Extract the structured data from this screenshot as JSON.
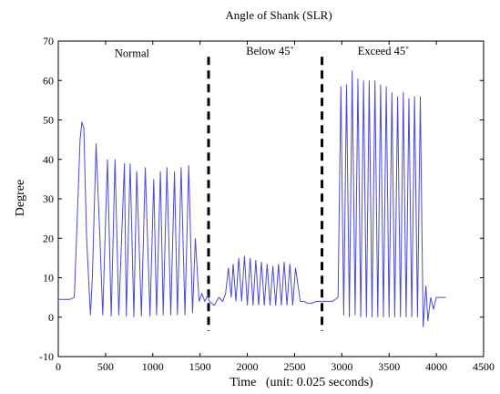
{
  "chart_data": {
    "type": "line",
    "title": "Angle of Shank (SLR)",
    "xlabel": "Time   (unit: 0.025 seconds)",
    "ylabel": "Degree",
    "xlim": [
      0,
      4500
    ],
    "ylim": [
      -10,
      70
    ],
    "xticks": [
      0,
      500,
      1000,
      1500,
      2000,
      2500,
      3000,
      3500,
      4000,
      4500
    ],
    "yticks": [
      -10,
      0,
      10,
      20,
      30,
      40,
      50,
      60,
      70
    ],
    "grid": false,
    "line_color": "#4a4ad8",
    "divider_lines": [
      {
        "x": 1590,
        "style": "dashed",
        "color": "#000000"
      },
      {
        "x": 2790,
        "style": "dashed",
        "color": "#000000"
      }
    ],
    "annotations": [
      {
        "text": "Normal",
        "x": 780,
        "y": 66
      },
      {
        "text": "Below 45˚",
        "x": 2240,
        "y": 66.5
      },
      {
        "text": "Exceed 45˚",
        "x": 3440,
        "y": 66.5
      }
    ],
    "series": [
      {
        "x": [
          0,
          60,
          120,
          170,
          200,
          230,
          250,
          270,
          300,
          340,
          360,
          400,
          440,
          470,
          520,
          560,
          600,
          640,
          700,
          720,
          760,
          800,
          830,
          880,
          920,
          970,
          1010,
          1040,
          1080,
          1110,
          1150,
          1190,
          1230,
          1260,
          1300,
          1340,
          1380,
          1420,
          1450,
          1490,
          1520,
          1550,
          1580,
          1600,
          1650,
          1700,
          1740,
          1770,
          1800,
          1830,
          1850,
          1880,
          1910,
          1940,
          1970,
          2000,
          2030,
          2060,
          2090,
          2120,
          2150,
          2180,
          2210,
          2240,
          2270,
          2300,
          2330,
          2360,
          2390,
          2420,
          2450,
          2480,
          2510,
          2560,
          2600,
          2640,
          2680,
          2730,
          2800,
          2900,
          2960,
          2990,
          3020,
          3050,
          3080,
          3110,
          3140,
          3170,
          3200,
          3230,
          3260,
          3290,
          3320,
          3350,
          3380,
          3410,
          3440,
          3470,
          3500,
          3530,
          3560,
          3590,
          3620,
          3650,
          3680,
          3710,
          3740,
          3770,
          3800,
          3830,
          3860,
          3890,
          3910,
          3940,
          3970,
          4000,
          4050,
          4100
        ],
        "y": [
          4.5,
          4.5,
          4.5,
          5,
          25,
          45,
          49.5,
          48,
          20,
          0.5,
          10,
          44,
          20,
          0.5,
          40,
          0.2,
          40,
          0.5,
          39,
          0.2,
          39,
          0,
          37,
          0.2,
          38,
          0.2,
          35,
          0.5,
          37,
          0.5,
          38,
          0.5,
          37,
          0.5,
          38,
          0.5,
          38.5,
          1,
          20,
          4,
          6,
          4,
          5.5,
          4,
          3,
          5,
          4,
          6,
          12.5,
          5,
          13.5,
          4,
          15,
          4,
          15.5,
          3,
          15,
          3,
          14.5,
          3,
          14,
          3,
          13.5,
          3,
          13,
          3,
          13.5,
          3,
          14,
          3,
          13.5,
          3,
          12.5,
          4,
          4,
          3.5,
          3.5,
          4,
          4,
          4,
          5,
          58.5,
          0.5,
          59,
          0,
          62.5,
          0.5,
          60.5,
          0,
          60,
          0,
          60,
          0,
          60,
          0,
          59,
          0,
          58.5,
          0,
          57,
          0,
          56,
          0,
          57,
          0,
          55.5,
          0,
          56,
          0,
          56,
          -2.5,
          8,
          -1,
          5,
          2,
          5,
          5,
          5
        ]
      }
    ]
  }
}
